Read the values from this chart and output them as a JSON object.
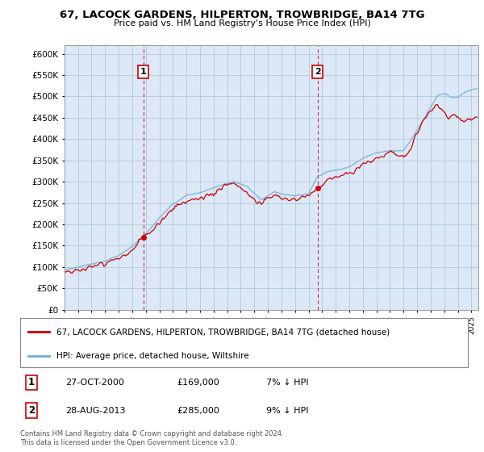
{
  "title": "67, LACOCK GARDENS, HILPERTON, TROWBRIDGE, BA14 7TG",
  "subtitle": "Price paid vs. HM Land Registry's House Price Index (HPI)",
  "legend_line1": "67, LACOCK GARDENS, HILPERTON, TROWBRIDGE, BA14 7TG (detached house)",
  "legend_line2": "HPI: Average price, detached house, Wiltshire",
  "annotation1_date": "27-OCT-2000",
  "annotation1_price": "£169,000",
  "annotation1_hpi": "7% ↓ HPI",
  "annotation2_date": "28-AUG-2013",
  "annotation2_price": "£285,000",
  "annotation2_hpi": "9% ↓ HPI",
  "footer": "Contains HM Land Registry data © Crown copyright and database right 2024.\nThis data is licensed under the Open Government Licence v3.0.",
  "sale1_x": 2000.82,
  "sale1_y": 169000,
  "sale2_x": 2013.66,
  "sale2_y": 285000,
  "hpi_color": "#6baed6",
  "price_color": "#cc0000",
  "vline_color": "#cc0000",
  "chart_bg_color": "#dce8f5",
  "background_color": "#ffffff",
  "grid_color": "#b0c8e0",
  "ylim": [
    0,
    620000
  ],
  "xlim_start": 1995.0,
  "xlim_end": 2025.5,
  "yticks": [
    0,
    50000,
    100000,
    150000,
    200000,
    250000,
    300000,
    350000,
    400000,
    450000,
    500000,
    550000,
    600000
  ]
}
